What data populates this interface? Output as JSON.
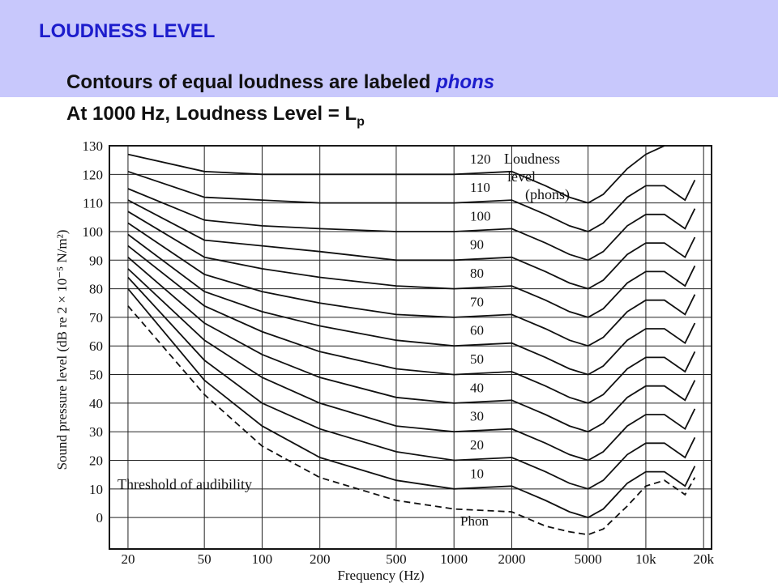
{
  "slide": {
    "title": "LOUDNESS LEVEL",
    "line1": {
      "text": "Contours of equal loudness are labeled ",
      "emphasis": "phons"
    },
    "line2": {
      "text": "At 1000 Hz, Loudness Level = L",
      "subscript": "p"
    }
  },
  "chart_data": {
    "type": "line",
    "y_label": "Sound pressure level (dB re 2 × 10⁻⁵ N/m²)",
    "x_label": "Frequency (Hz)",
    "annotations": {
      "legend_title": [
        "Loudness",
        "level",
        "(phons)"
      ],
      "zero": "Phon"
    },
    "x_scale": "log",
    "grid": true,
    "xlim": [
      16,
      22000
    ],
    "xticks": [
      20,
      50,
      100,
      200,
      500,
      1000,
      2000,
      5000,
      {
        "value": 10000,
        "label": "10k"
      },
      {
        "value": 20000,
        "label": "20k"
      }
    ],
    "ylim": [
      -11,
      130
    ],
    "yticks": [
      0,
      10,
      20,
      30,
      40,
      50,
      60,
      70,
      80,
      90,
      100,
      110,
      120,
      130
    ],
    "x": [
      20,
      50,
      100,
      200,
      500,
      1000,
      2000,
      3000,
      4000,
      5000,
      6000,
      8000,
      10000,
      12500,
      16000,
      18000
    ],
    "series": [
      {
        "name": "10",
        "color": "#111111",
        "values": [
          80,
          48,
          32,
          21,
          13,
          10,
          11,
          6,
          2,
          0,
          3,
          12,
          16,
          16,
          11,
          18
        ]
      },
      {
        "name": "20",
        "color": "#111111",
        "values": [
          84,
          55,
          40,
          31,
          23,
          20,
          21,
          16,
          12,
          10,
          13,
          22,
          26,
          26,
          21,
          28
        ]
      },
      {
        "name": "30",
        "color": "#111111",
        "values": [
          87,
          62,
          49,
          40,
          32,
          30,
          31,
          26,
          22,
          20,
          23,
          32,
          36,
          36,
          31,
          38
        ]
      },
      {
        "name": "40",
        "color": "#111111",
        "values": [
          91,
          68,
          57,
          49,
          42,
          40,
          41,
          36,
          32,
          30,
          33,
          42,
          46,
          46,
          41,
          48
        ]
      },
      {
        "name": "50",
        "color": "#111111",
        "values": [
          95,
          74,
          65,
          58,
          52,
          50,
          51,
          46,
          42,
          40,
          43,
          52,
          56,
          56,
          51,
          58
        ]
      },
      {
        "name": "60",
        "color": "#111111",
        "values": [
          99,
          79,
          72,
          67,
          62,
          60,
          61,
          56,
          52,
          50,
          53,
          62,
          66,
          66,
          61,
          68
        ]
      },
      {
        "name": "70",
        "color": "#111111",
        "values": [
          103,
          85,
          79,
          75,
          71,
          70,
          71,
          66,
          62,
          60,
          63,
          72,
          76,
          76,
          71,
          78
        ]
      },
      {
        "name": "80",
        "color": "#111111",
        "values": [
          107,
          91,
          87,
          84,
          81,
          80,
          81,
          76,
          72,
          70,
          73,
          82,
          86,
          86,
          81,
          88
        ]
      },
      {
        "name": "90",
        "color": "#111111",
        "values": [
          111,
          97,
          95,
          93,
          90,
          90,
          91,
          86,
          82,
          80,
          83,
          92,
          96,
          96,
          91,
          98
        ]
      },
      {
        "name": "100",
        "color": "#111111",
        "values": [
          115,
          104,
          102,
          101,
          100,
          100,
          101,
          96,
          92,
          90,
          93,
          102,
          106,
          106,
          101,
          108
        ]
      },
      {
        "name": "110",
        "color": "#111111",
        "values": [
          121,
          112,
          111,
          110,
          110,
          110,
          111,
          106,
          102,
          100,
          103,
          112,
          116,
          116,
          111,
          118
        ]
      },
      {
        "name": "120",
        "color": "#111111",
        "values": [
          127,
          121,
          120,
          120,
          120,
          120,
          121,
          116,
          112,
          110,
          113,
          122,
          127,
          130,
          null,
          null
        ]
      },
      {
        "name": "Threshold of audibility",
        "color": "#111111",
        "dashed": true,
        "values": [
          74,
          43,
          25,
          14,
          6,
          3,
          2,
          -3,
          -5,
          -6,
          -4,
          4,
          11,
          13,
          8,
          14
        ]
      }
    ]
  }
}
